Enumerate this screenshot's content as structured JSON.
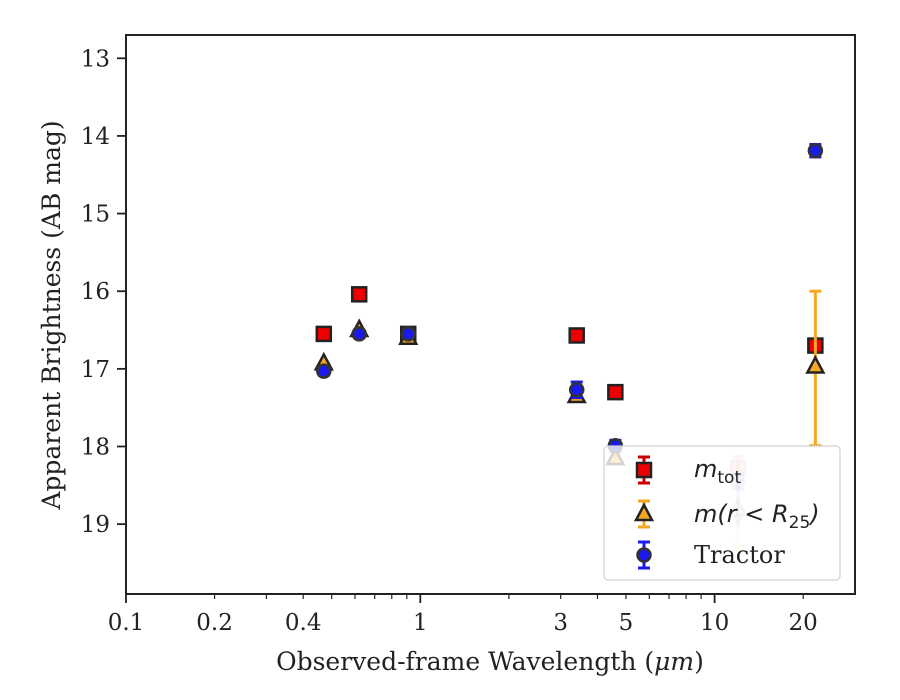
{
  "chart_data": {
    "type": "scatter",
    "xlabel_prefix": "Observed-frame Wavelength (",
    "xlabel_unit": "μm",
    "xlabel_suffix": ")",
    "ylabel": "Apparent Brightness (AB mag)",
    "x_scale": "log",
    "xlim": [
      0.1,
      30
    ],
    "ylim": [
      19.9,
      12.7
    ],
    "y_inverted": true,
    "grid": false,
    "legend_position": "lower-right",
    "x_ticks": [
      {
        "value": 0.1,
        "label": "0.1"
      },
      {
        "value": 0.2,
        "label": "0.2"
      },
      {
        "value": 0.4,
        "label": "0.4"
      },
      {
        "value": 1,
        "label": "1"
      },
      {
        "value": 3,
        "label": "3"
      },
      {
        "value": 5,
        "label": "5"
      },
      {
        "value": 10,
        "label": "10"
      },
      {
        "value": 20,
        "label": "20"
      }
    ],
    "y_ticks": [
      {
        "value": 13,
        "label": "13"
      },
      {
        "value": 14,
        "label": "14"
      },
      {
        "value": 15,
        "label": "15"
      },
      {
        "value": 16,
        "label": "16"
      },
      {
        "value": 17,
        "label": "17"
      },
      {
        "value": 18,
        "label": "18"
      },
      {
        "value": 19,
        "label": "19"
      }
    ],
    "series": [
      {
        "key": "mtot",
        "legend_label": "m",
        "legend_sub": "tot",
        "marker": "square",
        "color": "#ee0000",
        "edge_color": "#222222",
        "error_color": "#cc0000",
        "points": [
          {
            "x": 0.47,
            "y": 16.55
          },
          {
            "x": 0.62,
            "y": 16.04
          },
          {
            "x": 0.91,
            "y": 16.55
          },
          {
            "x": 3.4,
            "y": 16.57
          },
          {
            "x": 4.6,
            "y": 17.3
          },
          {
            "x": 12.0,
            "y": 18.28,
            "err": 0.15,
            "occluded": true
          },
          {
            "x": 22.0,
            "y": 16.7
          }
        ]
      },
      {
        "key": "mr25",
        "legend_label": "m(r < R",
        "legend_sub": "25",
        "legend_suffix": ")",
        "marker": "triangle",
        "color": "#f5a623",
        "edge_color": "#222222",
        "error_color": "#f5a623",
        "points": [
          {
            "x": 0.47,
            "y": 16.93
          },
          {
            "x": 0.62,
            "y": 16.5
          },
          {
            "x": 0.91,
            "y": 16.6
          },
          {
            "x": 3.4,
            "y": 17.35
          },
          {
            "x": 4.6,
            "y": 18.15
          },
          {
            "x": 12.0,
            "y": 18.8,
            "upper_limit": true,
            "occluded": true
          },
          {
            "x": 22.0,
            "y": 16.97,
            "err_low": 0.97,
            "err_high": 1.02
          }
        ]
      },
      {
        "key": "tractor",
        "legend_label": "Tractor",
        "marker": "circle",
        "color": "#1a1aee",
        "edge_color": "#333333",
        "error_color": "#1a1aee",
        "points": [
          {
            "x": 0.47,
            "y": 17.03,
            "err": 0.05
          },
          {
            "x": 0.62,
            "y": 16.55,
            "err": 0.05
          },
          {
            "x": 0.91,
            "y": 16.55,
            "err": 0.05
          },
          {
            "x": 3.4,
            "y": 17.27,
            "err": 0.1
          },
          {
            "x": 4.6,
            "y": 17.99,
            "err": 0.07
          },
          {
            "x": 12.0,
            "y": 18.45,
            "err": 0.1,
            "upper_limit": true,
            "occluded": true
          },
          {
            "x": 22.0,
            "y": 14.19,
            "err": 0.08
          }
        ]
      }
    ]
  }
}
